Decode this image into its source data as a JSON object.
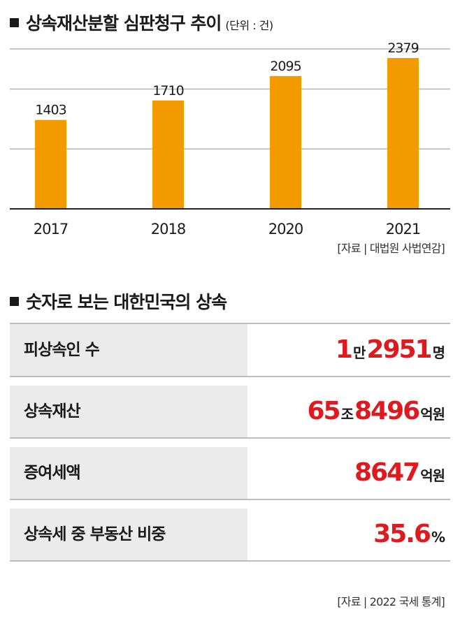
{
  "section1": {
    "title": "상속재산분할 심판청구 추이",
    "unit": "(단위 : 건)",
    "source": "[자료 | 대법원 사법연감]"
  },
  "chart_data": {
    "type": "bar",
    "title": "상속재산분할 심판청구 추이",
    "categories": [
      "2017",
      "2018",
      "2020",
      "2021"
    ],
    "values": [
      1403,
      1710,
      2095,
      2379
    ],
    "data_labels": [
      "1403",
      "1710",
      "2095",
      "2379"
    ],
    "ylim": [
      0,
      2600
    ],
    "grid": true,
    "bar_color": "#f29a00",
    "gridline_color": "#b5b5b5"
  },
  "section2": {
    "title": "숫자로 보는 대한민국의 상속",
    "rows": [
      {
        "label": "피상속인 수",
        "parts": [
          {
            "t": "1",
            "k": "num"
          },
          {
            "t": "만",
            "k": "u"
          },
          {
            "t": "2951",
            "k": "num"
          },
          {
            "t": "명",
            "k": "u"
          }
        ]
      },
      {
        "label": "상속재산",
        "parts": [
          {
            "t": "65",
            "k": "num"
          },
          {
            "t": "조",
            "k": "u"
          },
          {
            "t": "8496",
            "k": "num"
          },
          {
            "t": "억원",
            "k": "u"
          }
        ]
      },
      {
        "label": "증여세액",
        "parts": [
          {
            "t": "8647",
            "k": "num"
          },
          {
            "t": "억원",
            "k": "u"
          }
        ]
      },
      {
        "label": "상속세 중 부동산 비중",
        "parts": [
          {
            "t": "35.6",
            "k": "num"
          },
          {
            "t": "%",
            "k": "u"
          }
        ]
      }
    ],
    "source": "[자료 | 2022 국세 통계]"
  },
  "colors": {
    "accent_red": "#e0191e",
    "bar_orange": "#f29a00",
    "label_bg": "#ebebeb"
  }
}
